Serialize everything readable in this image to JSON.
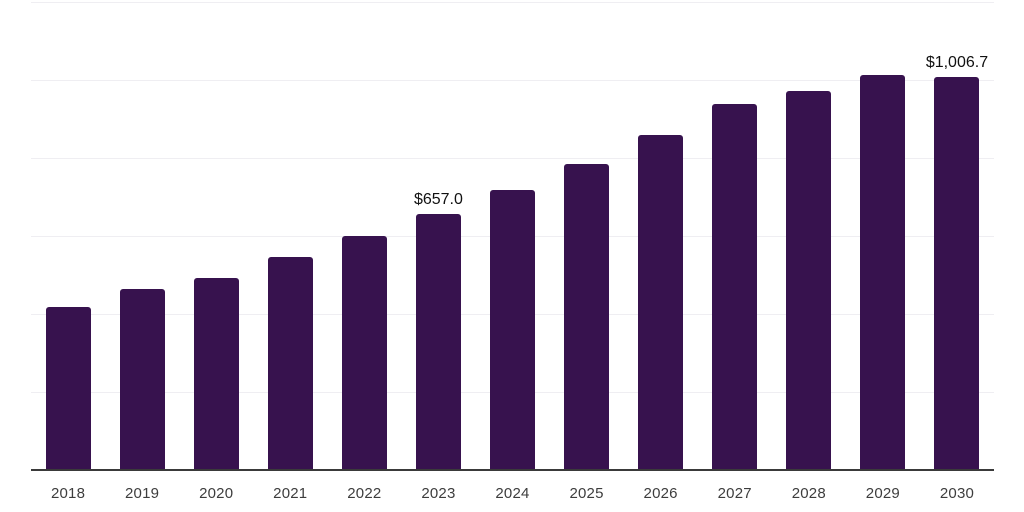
{
  "chart_data": {
    "type": "bar",
    "title": "",
    "xlabel": "",
    "ylabel": "",
    "categories": [
      "2018",
      "2019",
      "2020",
      "2021",
      "2022",
      "2023",
      "2024",
      "2025",
      "2026",
      "2027",
      "2028",
      "2029",
      "2030"
    ],
    "values": [
      419,
      463,
      492,
      545,
      599,
      657.0,
      719,
      785,
      858,
      938,
      972,
      1013,
      1006.7
    ],
    "data_labels": {
      "2023": "$657.0",
      "2030": "$1,006.7"
    },
    "ylim": [
      0,
      1200
    ],
    "grid_step": 200,
    "grid": "horizontal-only",
    "legend": "none",
    "bar_color": "#37124E",
    "gridline_color": "#efeef2",
    "axis_line_color": "#3a3a3a",
    "tick_label_color": "#3d3d3d",
    "value_label_color": "#111111",
    "background_color": "#ffffff"
  }
}
